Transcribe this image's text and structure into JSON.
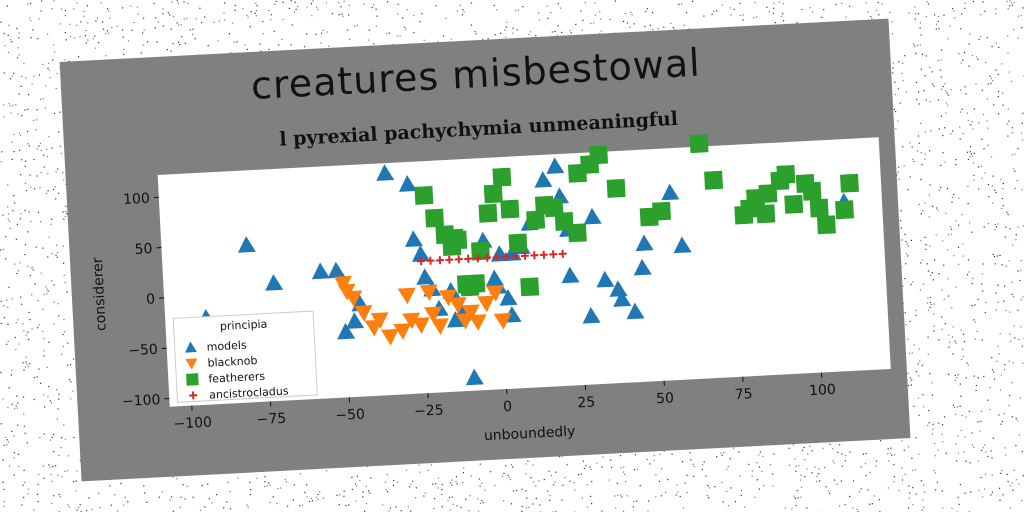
{
  "chart_data": {
    "type": "scatter",
    "title": "creatures misbestowal",
    "subtitle": "l pyrexial pachychymia unmeaningful",
    "xlabel": "unboundedly",
    "ylabel": "considerer",
    "xlim": [
      -107,
      122
    ],
    "ylim": [
      -108,
      122
    ],
    "xticks": [
      -100,
      -75,
      -50,
      -25,
      0,
      25,
      50,
      75,
      100
    ],
    "yticks": [
      -100,
      -50,
      0,
      50,
      100
    ],
    "grid": false,
    "legend": {
      "title": "principia",
      "placement": "lower-left"
    },
    "series": [
      {
        "name": "models",
        "marker": "triangle-up",
        "color": "#1f77b4",
        "points": [
          [
            -94,
            -22
          ],
          [
            -80,
            48
          ],
          [
            -72,
            9
          ],
          [
            -57,
            18
          ],
          [
            -52,
            18
          ],
          [
            -45,
            -16
          ],
          [
            -47,
            -33
          ],
          [
            -50,
            -43
          ],
          [
            -35,
            112
          ],
          [
            -28,
            100
          ],
          [
            -27,
            45
          ],
          [
            -25,
            30
          ],
          [
            -24,
            7
          ],
          [
            -22,
            -5
          ],
          [
            -20,
            -25
          ],
          [
            -16,
            -8
          ],
          [
            -15,
            -37
          ],
          [
            -13,
            -31
          ],
          [
            -10,
            -95
          ],
          [
            -5,
            40
          ],
          [
            -2,
            2
          ],
          [
            0,
            26
          ],
          [
            -1,
            -6
          ],
          [
            2,
            -18
          ],
          [
            3,
            -35
          ],
          [
            4,
            26
          ],
          [
            7,
            32
          ],
          [
            10,
            55
          ],
          [
            15,
            97
          ],
          [
            19,
            110
          ],
          [
            20,
            80
          ],
          [
            22,
            47
          ],
          [
            22,
            1
          ],
          [
            28,
            -40
          ],
          [
            30,
            58
          ],
          [
            33,
            -5
          ],
          [
            37,
            -15
          ],
          [
            38,
            -25
          ],
          [
            42,
            -38
          ],
          [
            45,
            5
          ],
          [
            46,
            29
          ],
          [
            55,
            78
          ],
          [
            58,
            25
          ],
          [
            110,
            60
          ]
        ]
      },
      {
        "name": "blacknob",
        "marker": "triangle-down",
        "color": "#ff7f0e",
        "points": [
          [
            -50,
            5
          ],
          [
            -49,
            -3
          ],
          [
            -47,
            -10
          ],
          [
            -44,
            -25
          ],
          [
            -41,
            -40
          ],
          [
            -39,
            -33
          ],
          [
            -36,
            -50
          ],
          [
            -32,
            -45
          ],
          [
            -29,
            -35
          ],
          [
            -26,
            -40
          ],
          [
            -22,
            -30
          ],
          [
            -23,
            -8
          ],
          [
            -20,
            -42
          ],
          [
            -17,
            -14
          ],
          [
            -14,
            -22
          ],
          [
            -12,
            -38
          ],
          [
            -10,
            -30
          ],
          [
            -8,
            -40
          ],
          [
            -5,
            -22
          ],
          [
            0,
            -40
          ],
          [
            -2,
            -12
          ],
          [
            -30,
            -10
          ]
        ]
      },
      {
        "name": "featherers",
        "marker": "square",
        "color": "#2ca02c",
        "points": [
          [
            -23,
            88
          ],
          [
            -20,
            65
          ],
          [
            -17,
            48
          ],
          [
            -15,
            36
          ],
          [
            -13,
            42
          ],
          [
            -10,
            -5
          ],
          [
            -8,
            -2
          ],
          [
            -6,
            30
          ],
          [
            -3,
            67
          ],
          [
            -1,
            86
          ],
          [
            2,
            102
          ],
          [
            4,
            70
          ],
          [
            6,
            36
          ],
          [
            9,
            -8
          ],
          [
            12,
            58
          ],
          [
            15,
            72
          ],
          [
            18,
            69
          ],
          [
            21,
            55
          ],
          [
            25,
            43
          ],
          [
            26,
            102
          ],
          [
            30,
            110
          ],
          [
            33,
            119
          ],
          [
            38,
            85
          ],
          [
            48,
            55
          ],
          [
            52,
            60
          ],
          [
            65,
            125
          ],
          [
            69,
            88
          ],
          [
            78,
            52
          ],
          [
            80,
            58
          ],
          [
            82,
            68
          ],
          [
            85,
            52
          ],
          [
            86,
            72
          ],
          [
            90,
            84
          ],
          [
            92,
            90
          ],
          [
            94,
            60
          ],
          [
            98,
            80
          ],
          [
            100,
            72
          ],
          [
            102,
            55
          ],
          [
            104,
            38
          ],
          [
            110,
            52
          ],
          [
            112,
            78
          ],
          [
            -14,
            44
          ],
          [
            -11,
            -2
          ]
        ]
      },
      {
        "name": "ancistrocladus",
        "marker": "plus",
        "color": "#d62728",
        "points": [
          [
            -25,
            23
          ],
          [
            -22,
            23
          ],
          [
            -19,
            23
          ],
          [
            -16,
            23
          ],
          [
            -13,
            23
          ],
          [
            -10,
            23
          ],
          [
            -7,
            23
          ],
          [
            -4,
            23
          ],
          [
            -1,
            23
          ],
          [
            2,
            23
          ],
          [
            5,
            23
          ],
          [
            8,
            23
          ],
          [
            11,
            23
          ],
          [
            14,
            23
          ],
          [
            17,
            23
          ],
          [
            20,
            23
          ]
        ]
      }
    ]
  }
}
